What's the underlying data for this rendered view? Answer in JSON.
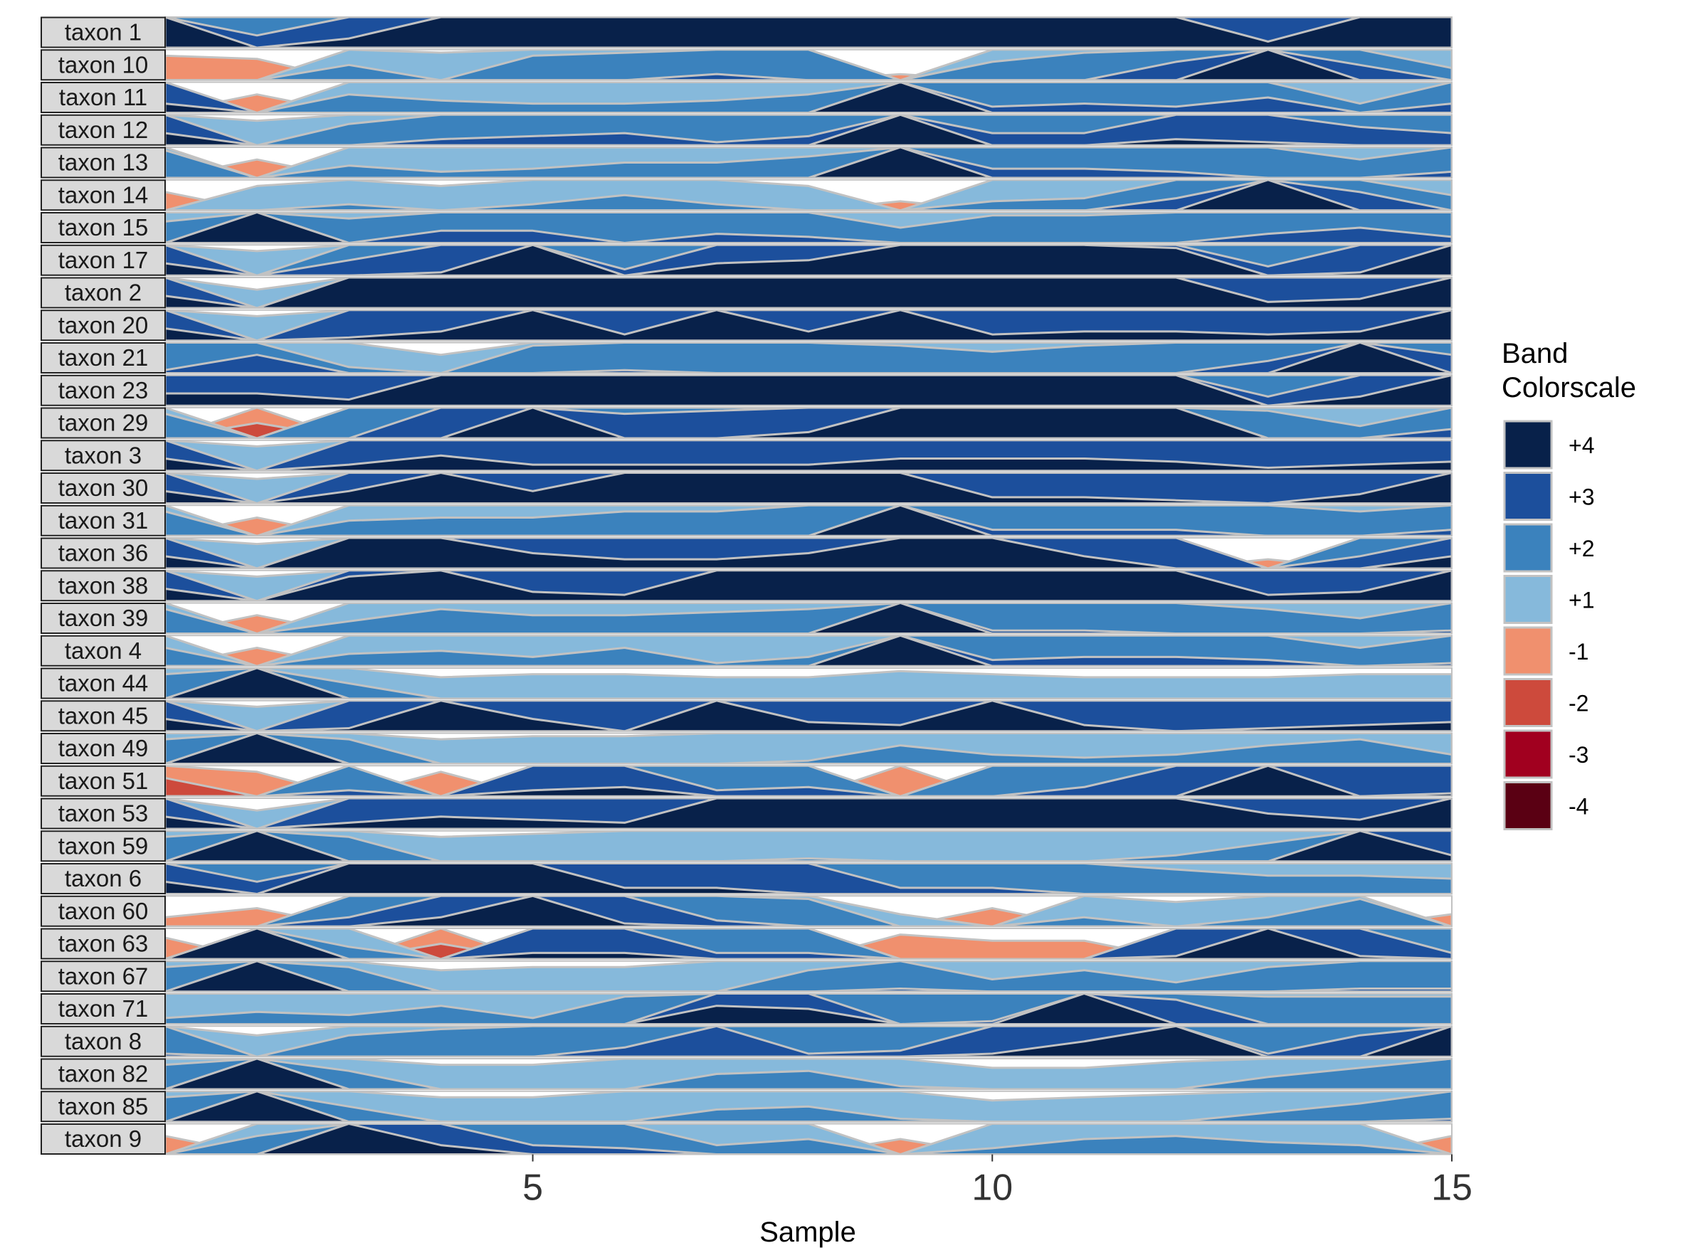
{
  "chart_data": {
    "type": "horizon",
    "title": "",
    "xlabel": "Sample",
    "ylabel": "",
    "xlim": [
      1,
      15
    ],
    "x_ticks": [
      5,
      10,
      15
    ],
    "x_tick_labels": [
      "5",
      "10",
      "15"
    ],
    "x": [
      1,
      2,
      3,
      4,
      5,
      6,
      7,
      8,
      9,
      10,
      11,
      12,
      13,
      14,
      15
    ],
    "legend": {
      "title": "Band\nColorscale",
      "position": "right",
      "entries": [
        {
          "label": "+4",
          "band": 4,
          "color": "#08214a"
        },
        {
          "label": "+3",
          "band": 3,
          "color": "#1c4f9c"
        },
        {
          "label": "+2",
          "band": 2,
          "color": "#3b82bd"
        },
        {
          "label": "+1",
          "band": 1,
          "color": "#86b9db"
        },
        {
          "label": "-1",
          "band": -1,
          "color": "#f0906e"
        },
        {
          "label": "-2",
          "band": -2,
          "color": "#cd4a3c"
        },
        {
          "label": "-3",
          "band": -3,
          "color": "#a1001f"
        },
        {
          "label": "-4",
          "band": -4,
          "color": "#5a0013"
        }
      ]
    },
    "series": [
      {
        "name": "taxon 1",
        "values": [
          4.1,
          2.4,
          3.3,
          4.2,
          4.1,
          4.0,
          4.1,
          4.1,
          4.0,
          4.2,
          4.1,
          4.0,
          3.2,
          4.1,
          4.1
        ]
      },
      {
        "name": "taxon 10",
        "values": [
          -0.8,
          -0.7,
          1.5,
          0.9,
          1.8,
          1.9,
          2.2,
          2.0,
          -0.2,
          1.6,
          1.9,
          2.6,
          4.0,
          2.5,
          1.4
        ]
      },
      {
        "name": "taxon 11",
        "values": [
          3.3,
          -0.6,
          1.6,
          1.4,
          1.3,
          1.3,
          1.4,
          1.6,
          4.0,
          2.2,
          2.3,
          2.2,
          2.5,
          1.3,
          2.3
        ]
      },
      {
        "name": "taxon 12",
        "values": [
          3.4,
          0.8,
          1.7,
          2.2,
          2.3,
          2.4,
          2.1,
          2.3,
          4.0,
          2.4,
          2.4,
          3.2,
          3.1,
          2.6,
          2.4
        ]
      },
      {
        "name": "taxon 13",
        "values": [
          1.9,
          -0.6,
          1.4,
          1.2,
          1.3,
          1.5,
          1.5,
          1.7,
          4.0,
          2.3,
          2.3,
          2.2,
          2.0,
          1.6,
          2.2
        ]
      },
      {
        "name": "taxon 14",
        "values": [
          -0.6,
          0.8,
          1.2,
          0.8,
          1.2,
          1.5,
          1.2,
          0.8,
          -0.3,
          1.3,
          1.4,
          2.4,
          4.0,
          2.6,
          1.5
        ]
      },
      {
        "name": "taxon 15",
        "values": [
          1.7,
          4.1,
          1.8,
          2.4,
          2.4,
          2.0,
          2.3,
          2.2,
          1.5,
          1.9,
          1.9,
          2.0,
          2.3,
          2.5,
          2.2
        ]
      },
      {
        "name": "taxon 17",
        "values": [
          3.4,
          0.8,
          2.5,
          3.1,
          4.1,
          2.2,
          3.4,
          3.5,
          4.0,
          4.0,
          4.0,
          3.9,
          2.3,
          3.1,
          4.1
        ]
      },
      {
        "name": "taxon 2",
        "values": [
          3.4,
          0.6,
          4.1,
          4.1,
          4.1,
          4.0,
          4.0,
          4.0,
          4.1,
          4.1,
          4.1,
          4.0,
          3.2,
          3.3,
          4.2
        ]
      },
      {
        "name": "taxon 20",
        "values": [
          3.4,
          0.8,
          3.1,
          3.3,
          4.1,
          3.2,
          4.1,
          3.3,
          4.0,
          3.2,
          3.3,
          3.3,
          3.2,
          3.3,
          4.1
        ]
      },
      {
        "name": "taxon 21",
        "values": [
          2.1,
          2.6,
          1.2,
          0.6,
          1.9,
          2.1,
          2.0,
          2.0,
          1.9,
          1.7,
          1.9,
          2.0,
          2.4,
          4.0,
          2.6
        ]
      },
      {
        "name": "taxon 23",
        "values": [
          3.4,
          3.4,
          3.2,
          4.0,
          4.1,
          4.1,
          4.1,
          4.1,
          4.1,
          4.1,
          4.1,
          4.1,
          2.3,
          3.3,
          4.1
        ]
      },
      {
        "name": "taxon 29",
        "values": [
          1.8,
          -1.5,
          2.0,
          3.0,
          4.0,
          2.8,
          2.9,
          3.2,
          4.0,
          4.0,
          4.1,
          4.1,
          1.9,
          1.4,
          2.3
        ]
      },
      {
        "name": "taxon 3",
        "values": [
          3.4,
          0.8,
          3.2,
          3.5,
          3.2,
          3.2,
          3.2,
          3.2,
          3.4,
          3.4,
          3.4,
          3.3,
          3.1,
          3.2,
          3.3
        ]
      },
      {
        "name": "taxon 30",
        "values": [
          3.4,
          0.8,
          3.4,
          4.0,
          3.4,
          4.0,
          4.0,
          4.0,
          4.0,
          3.2,
          3.2,
          3.1,
          3.0,
          3.3,
          4.0
        ]
      },
      {
        "name": "taxon 31",
        "values": [
          1.8,
          -0.6,
          1.5,
          1.6,
          1.6,
          1.8,
          1.8,
          2.0,
          4.0,
          2.2,
          2.2,
          2.2,
          2.0,
          1.8,
          2.2
        ]
      },
      {
        "name": "taxon 36",
        "values": [
          3.4,
          0.8,
          4.1,
          4.0,
          3.5,
          3.3,
          3.3,
          3.5,
          4.1,
          4.1,
          3.4,
          3.0,
          -0.3,
          2.4,
          3.4
        ]
      },
      {
        "name": "taxon 38",
        "values": [
          3.4,
          0.8,
          3.8,
          4.0,
          3.3,
          3.2,
          4.0,
          4.0,
          4.0,
          4.0,
          4.0,
          4.0,
          3.2,
          3.3,
          4.1
        ]
      },
      {
        "name": "taxon 39",
        "values": [
          1.8,
          -0.6,
          1.4,
          1.8,
          1.6,
          1.6,
          1.7,
          1.8,
          4.0,
          2.1,
          2.1,
          2.0,
          1.8,
          1.5,
          2.1
        ]
      },
      {
        "name": "taxon 4",
        "values": [
          1.6,
          -0.6,
          1.4,
          1.5,
          1.3,
          1.6,
          1.1,
          1.3,
          4.0,
          2.2,
          2.3,
          2.3,
          2.2,
          1.6,
          2.1
        ]
      },
      {
        "name": "taxon 44",
        "values": [
          1.8,
          4.0,
          1.5,
          0.7,
          0.8,
          0.8,
          0.7,
          0.7,
          0.9,
          0.8,
          0.7,
          0.7,
          0.7,
          0.8,
          0.8
        ]
      },
      {
        "name": "taxon 45",
        "values": [
          3.4,
          0.8,
          3.1,
          4.0,
          3.4,
          3.0,
          4.0,
          3.3,
          3.2,
          4.0,
          3.2,
          3.0,
          3.1,
          3.2,
          3.3
        ]
      },
      {
        "name": "taxon 49",
        "values": [
          1.8,
          4.0,
          1.8,
          0.8,
          0.9,
          0.9,
          1.0,
          1.1,
          1.6,
          1.3,
          1.2,
          1.3,
          1.6,
          1.8,
          1.3
        ]
      },
      {
        "name": "taxon 51",
        "values": [
          -1.6,
          -0.8,
          2.2,
          -0.8,
          3.2,
          3.3,
          2.2,
          2.3,
          -1.0,
          2.0,
          2.3,
          3.0,
          4.0,
          3.0,
          3.1
        ]
      },
      {
        "name": "taxon 53",
        "values": [
          3.4,
          0.6,
          3.2,
          3.4,
          3.3,
          3.2,
          4.0,
          4.1,
          4.0,
          4.1,
          4.0,
          4.0,
          3.5,
          3.3,
          4.1
        ]
      },
      {
        "name": "taxon 59",
        "values": [
          1.8,
          4.0,
          1.8,
          0.8,
          0.9,
          1.0,
          1.0,
          1.1,
          1.0,
          1.0,
          1.0,
          1.2,
          1.6,
          4.0,
          3.2
        ]
      },
      {
        "name": "taxon 6",
        "values": [
          3.4,
          2.4,
          4.1,
          4.2,
          4.1,
          3.2,
          3.2,
          3.0,
          2.2,
          2.2,
          2.0,
          1.8,
          1.6,
          1.6,
          1.5
        ]
      },
      {
        "name": "taxon 60",
        "values": [
          -0.3,
          -0.6,
          2.3,
          3.3,
          4.0,
          3.1,
          2.2,
          1.9,
          0.4,
          -0.6,
          1.3,
          0.8,
          1.3,
          1.9,
          -0.4
        ]
      },
      {
        "name": "taxon 63",
        "values": [
          -0.7,
          4.0,
          1.4,
          -1.5,
          3.2,
          3.2,
          2.2,
          2.2,
          -0.8,
          -0.6,
          -0.6,
          3.1,
          4.0,
          3.1,
          2.2
        ]
      },
      {
        "name": "taxon 67",
        "values": [
          1.8,
          4.0,
          1.8,
          0.7,
          0.8,
          0.8,
          1.0,
          1.7,
          2.1,
          1.4,
          1.7,
          1.3,
          1.8,
          2.1,
          2.1
        ]
      },
      {
        "name": "taxon 71",
        "values": [
          1.2,
          1.4,
          1.3,
          1.6,
          1.2,
          1.9,
          3.6,
          3.5,
          2.0,
          2.1,
          4.0,
          2.8,
          1.9,
          1.9,
          1.9
        ]
      },
      {
        "name": "taxon 8",
        "values": [
          2.1,
          0.7,
          1.7,
          1.9,
          2.0,
          2.3,
          3.0,
          2.1,
          2.2,
          3.1,
          3.5,
          4.1,
          2.1,
          2.7,
          4.0
        ]
      },
      {
        "name": "taxon 82",
        "values": [
          1.8,
          4.0,
          1.6,
          0.8,
          0.8,
          1.0,
          1.5,
          1.6,
          1.1,
          0.7,
          0.7,
          0.9,
          1.4,
          1.7,
          2.0
        ]
      },
      {
        "name": "taxon 85",
        "values": [
          1.8,
          4.0,
          1.5,
          0.8,
          0.8,
          1.0,
          1.4,
          1.5,
          1.1,
          0.7,
          0.8,
          0.9,
          1.3,
          1.6,
          2.1
        ]
      },
      {
        "name": "taxon 9",
        "values": [
          -0.6,
          1.6,
          4.0,
          3.3,
          2.3,
          2.2,
          1.3,
          1.5,
          -0.5,
          1.2,
          1.5,
          1.6,
          1.4,
          1.3,
          -0.6
        ]
      }
    ]
  }
}
